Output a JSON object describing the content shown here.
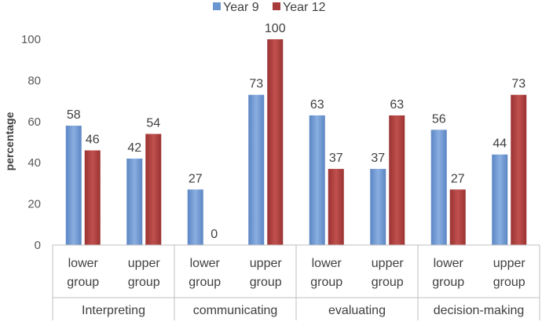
{
  "chart_data": {
    "type": "bar",
    "title": "",
    "ylabel": "percentage",
    "xlabel": "",
    "ylim": [
      0,
      100
    ],
    "yticks": [
      0,
      20,
      40,
      60,
      80,
      100
    ],
    "legend_position": "top-center",
    "groups": [
      "Interpreting",
      "communicating",
      "evaluating",
      "decision-making"
    ],
    "categories": [
      {
        "group": "Interpreting",
        "line1": "lower",
        "line2": "group"
      },
      {
        "group": "Interpreting",
        "line1": "upper",
        "line2": "group"
      },
      {
        "group": "communicating",
        "line1": "lower",
        "line2": "group"
      },
      {
        "group": "communicating",
        "line1": "upper",
        "line2": "group"
      },
      {
        "group": "evaluating",
        "line1": "lower",
        "line2": "group"
      },
      {
        "group": "evaluating",
        "line1": "upper",
        "line2": "group"
      },
      {
        "group": "decision-making",
        "line1": "lower",
        "line2": "group"
      },
      {
        "group": "decision-making",
        "line1": "upper",
        "line2": "group"
      }
    ],
    "series": [
      {
        "name": "Year 9",
        "color": "#6a95d1",
        "values": [
          58,
          42,
          27,
          73,
          63,
          37,
          56,
          44
        ]
      },
      {
        "name": "Year 12",
        "color": "#a93b3a",
        "values": [
          46,
          54,
          0,
          100,
          37,
          63,
          27,
          73
        ]
      }
    ]
  }
}
